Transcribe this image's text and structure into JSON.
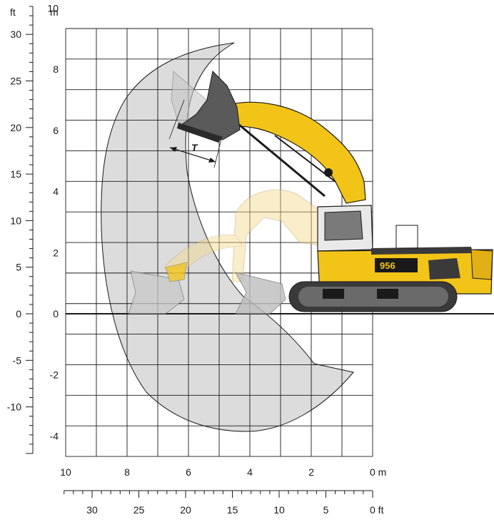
{
  "chart_data": {
    "type": "working-range-diagram",
    "units": {
      "primary_left": "ft",
      "primary_top": "m",
      "bottom_m": "m",
      "bottom_ft": "ft"
    },
    "y_m_ticks": [
      "10",
      "8",
      "6",
      "4",
      "2",
      "0",
      "-2",
      "-4"
    ],
    "y_ft_ticks": [
      "30",
      "25",
      "20",
      "15",
      "10",
      "5",
      "0",
      "-5",
      "-10"
    ],
    "x_m_ticks": [
      "10",
      "8",
      "6",
      "4",
      "2",
      "0 m"
    ],
    "x_ft_ticks": [
      "30",
      "25",
      "20",
      "15",
      "10",
      "5",
      "0 ft"
    ],
    "x_range_m": [
      10,
      0
    ],
    "y_range_m": [
      -4,
      10
    ],
    "grid": true,
    "annotation": "T",
    "model_badge": "956",
    "colors": {
      "machine_yellow": "#f2c418",
      "range_fill": "#d9d9d9",
      "track": "#3a3a3a",
      "grid": "#1a1a1a"
    }
  }
}
